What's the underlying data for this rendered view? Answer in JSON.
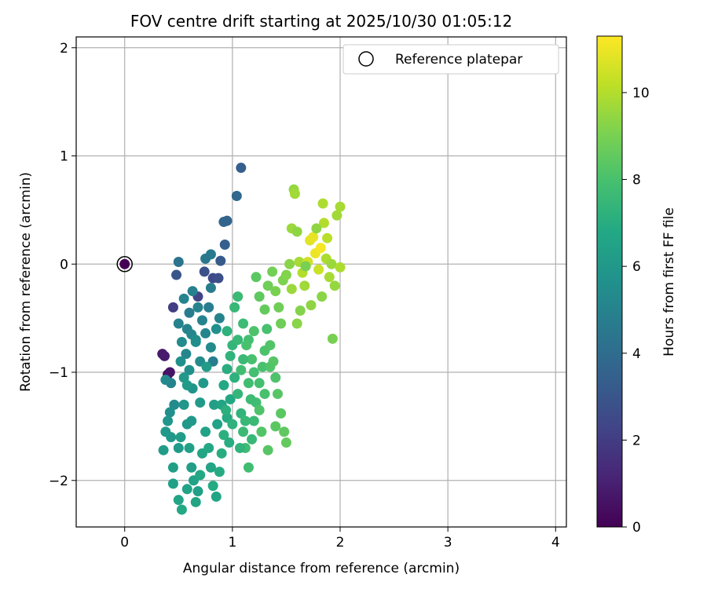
{
  "chart_data": {
    "type": "scatter",
    "title": "FOV centre drift starting at 2025/10/30 01:05:12",
    "xlabel": "Angular distance from reference (arcmin)",
    "ylabel": "Rotation from reference (arcmin)",
    "xlim": [
      -0.45,
      4.1
    ],
    "ylim": [
      -2.43,
      2.1
    ],
    "xticks": [
      0,
      1,
      2,
      3,
      4
    ],
    "yticks": [
      -2,
      -1,
      0,
      1,
      2
    ],
    "xtick_labels": [
      "0",
      "1",
      "2",
      "3",
      "4"
    ],
    "ytick_labels": [
      "−2",
      "−1",
      "0",
      "1",
      "2"
    ],
    "grid": true,
    "legend": {
      "position": "top-right",
      "entries": [
        "Reference platepar"
      ]
    },
    "colorbar": {
      "label": "Hours from first FF file",
      "range": [
        0,
        11.3
      ],
      "ticks": [
        0,
        2,
        4,
        6,
        8,
        10
      ],
      "tick_labels": [
        "0",
        "2",
        "4",
        "6",
        "8",
        "10"
      ],
      "colormap": "viridis"
    },
    "reference_point": {
      "x": 0,
      "y": 0,
      "hours": 0
    },
    "points": [
      [
        0.4,
        -1.02,
        0.3
      ],
      [
        0.35,
        -0.83,
        0.8
      ],
      [
        0.37,
        -0.85,
        0.8
      ],
      [
        0.42,
        -1.0,
        0.6
      ],
      [
        0.45,
        -0.4,
        2.0
      ],
      [
        0.48,
        -0.1,
        3.0
      ],
      [
        0.5,
        0.02,
        4.3
      ],
      [
        0.68,
        -0.3,
        2.3
      ],
      [
        0.74,
        -0.07,
        2.8
      ],
      [
        0.82,
        -0.13,
        2.5
      ],
      [
        0.87,
        -0.13,
        2.7
      ],
      [
        0.89,
        0.03,
        3.2
      ],
      [
        0.8,
        0.09,
        4.6
      ],
      [
        0.75,
        0.05,
        4.5
      ],
      [
        0.93,
        0.18,
        3.4
      ],
      [
        0.95,
        0.4,
        3.6
      ],
      [
        1.04,
        0.63,
        3.8
      ],
      [
        1.08,
        0.89,
        3.4
      ],
      [
        0.92,
        0.39,
        3.7
      ],
      [
        0.43,
        -1.1,
        5.0
      ],
      [
        0.38,
        -1.07,
        5.3
      ],
      [
        0.55,
        -0.32,
        5.0
      ],
      [
        0.58,
        -0.6,
        5.0
      ],
      [
        0.6,
        -0.45,
        4.7
      ],
      [
        0.62,
        -0.65,
        5.2
      ],
      [
        0.66,
        -0.72,
        5.6
      ],
      [
        0.7,
        -0.9,
        5.4
      ],
      [
        0.72,
        -0.52,
        5.0
      ],
      [
        0.75,
        -0.64,
        5.1
      ],
      [
        0.78,
        -0.4,
        4.8
      ],
      [
        0.8,
        -0.77,
        5.4
      ],
      [
        0.82,
        -0.9,
        4.8
      ],
      [
        0.85,
        -0.6,
        5.6
      ],
      [
        0.5,
        -0.55,
        5.0
      ],
      [
        0.53,
        -0.72,
        5.4
      ],
      [
        0.57,
        -0.83,
        5.2
      ],
      [
        0.6,
        -0.98,
        5.6
      ],
      [
        0.63,
        -1.15,
        5.8
      ],
      [
        0.66,
        -0.7,
        5.5
      ],
      [
        0.52,
        -0.9,
        5.6
      ],
      [
        0.55,
        -1.05,
        6.0
      ],
      [
        0.58,
        -1.12,
        6.1
      ],
      [
        0.46,
        -1.3,
        5.4
      ],
      [
        0.42,
        -1.37,
        5.6
      ],
      [
        0.4,
        -1.45,
        5.8
      ],
      [
        0.38,
        -1.55,
        6.0
      ],
      [
        0.36,
        -1.72,
        6.2
      ],
      [
        0.43,
        -1.6,
        6.0
      ],
      [
        0.45,
        -1.88,
        6.3
      ],
      [
        0.5,
        -1.7,
        6.1
      ],
      [
        0.52,
        -1.6,
        6.2
      ],
      [
        0.55,
        -1.3,
        5.9
      ],
      [
        0.58,
        -1.48,
        6.0
      ],
      [
        0.6,
        -1.7,
        6.4
      ],
      [
        0.62,
        -1.88,
        6.3
      ],
      [
        0.64,
        -2.0,
        6.5
      ],
      [
        0.66,
        -2.2,
        6.6
      ],
      [
        0.68,
        -2.1,
        6.4
      ],
      [
        0.7,
        -1.95,
        6.8
      ],
      [
        0.72,
        -1.75,
        6.6
      ],
      [
        0.75,
        -1.55,
        6.5
      ],
      [
        0.78,
        -1.7,
        6.8
      ],
      [
        0.8,
        -1.88,
        6.6
      ],
      [
        0.82,
        -2.05,
        6.9
      ],
      [
        0.85,
        -2.15,
        6.7
      ],
      [
        0.88,
        -1.92,
        6.9
      ],
      [
        0.9,
        -1.75,
        7.0
      ],
      [
        0.92,
        -1.58,
        7.1
      ],
      [
        0.95,
        -1.42,
        6.9
      ],
      [
        0.98,
        -1.25,
        6.8
      ],
      [
        0.45,
        -2.03,
        6.4
      ],
      [
        0.5,
        -2.18,
        6.6
      ],
      [
        0.53,
        -2.27,
        6.8
      ],
      [
        0.58,
        -2.08,
        6.5
      ],
      [
        0.62,
        -1.45,
        6.0
      ],
      [
        0.7,
        -1.28,
        6.1
      ],
      [
        0.73,
        -1.1,
        6.0
      ],
      [
        0.76,
        -0.95,
        6.2
      ],
      [
        0.83,
        -1.3,
        6.3
      ],
      [
        0.86,
        -1.48,
        6.5
      ],
      [
        0.9,
        -1.3,
        6.6
      ],
      [
        0.92,
        -1.12,
        6.8
      ],
      [
        0.95,
        -0.97,
        7.0
      ],
      [
        0.98,
        -0.85,
        7.3
      ],
      [
        1.0,
        -0.75,
        7.4
      ],
      [
        1.02,
        -1.05,
        7.2
      ],
      [
        1.05,
        -1.2,
        7.4
      ],
      [
        1.08,
        -1.38,
        7.3
      ],
      [
        1.1,
        -1.55,
        7.6
      ],
      [
        1.12,
        -1.7,
        7.7
      ],
      [
        1.15,
        -1.88,
        7.8
      ],
      [
        1.18,
        -1.62,
        7.5
      ],
      [
        1.2,
        -1.45,
        7.6
      ],
      [
        1.22,
        -1.28,
        7.8
      ],
      [
        1.25,
        -1.1,
        7.9
      ],
      [
        1.28,
        -0.95,
        8.0
      ],
      [
        1.3,
        -0.8,
        8.1
      ],
      [
        1.32,
        -0.6,
        8.0
      ],
      [
        1.35,
        -0.75,
        8.2
      ],
      [
        1.38,
        -0.9,
        8.3
      ],
      [
        1.4,
        -1.05,
        8.1
      ],
      [
        1.42,
        -1.2,
        8.3
      ],
      [
        1.45,
        -1.38,
        8.4
      ],
      [
        1.48,
        -1.55,
        8.5
      ],
      [
        1.5,
        -1.65,
        8.6
      ],
      [
        0.95,
        -0.62,
        7.2
      ],
      [
        1.02,
        -0.4,
        7.5
      ],
      [
        1.05,
        -0.3,
        7.6
      ],
      [
        1.1,
        -0.55,
        7.7
      ],
      [
        1.15,
        -0.7,
        7.9
      ],
      [
        1.18,
        -0.88,
        8.0
      ],
      [
        1.22,
        -0.12,
        8.4
      ],
      [
        1.25,
        -0.3,
        8.5
      ],
      [
        1.3,
        -0.42,
        8.6
      ],
      [
        1.33,
        -0.2,
        8.8
      ],
      [
        1.37,
        -0.07,
        8.9
      ],
      [
        1.4,
        -0.25,
        9.0
      ],
      [
        1.43,
        -0.4,
        8.8
      ],
      [
        1.47,
        -0.15,
        9.1
      ],
      [
        1.5,
        -0.1,
        9.2
      ],
      [
        1.53,
        0.0,
        9.3
      ],
      [
        1.55,
        0.33,
        9.6
      ],
      [
        1.57,
        0.69,
        9.5
      ],
      [
        1.58,
        0.65,
        9.7
      ],
      [
        1.6,
        0.3,
        9.4
      ],
      [
        1.62,
        0.02,
        9.8
      ],
      [
        1.65,
        -0.08,
        10.0
      ],
      [
        1.67,
        -0.2,
        9.7
      ],
      [
        1.7,
        0.02,
        10.5
      ],
      [
        1.72,
        0.22,
        10.8
      ],
      [
        1.75,
        0.25,
        10.9
      ],
      [
        1.77,
        0.1,
        11.0
      ],
      [
        1.8,
        -0.05,
        10.4
      ],
      [
        1.82,
        0.15,
        11.2
      ],
      [
        1.85,
        0.38,
        10.0
      ],
      [
        1.87,
        0.05,
        9.9
      ],
      [
        1.9,
        -0.12,
        9.8
      ],
      [
        1.92,
        0.0,
        9.6
      ],
      [
        1.95,
        -0.2,
        9.5
      ],
      [
        1.97,
        0.45,
        9.7
      ],
      [
        2.0,
        -0.03,
        9.9
      ],
      [
        2.0,
        0.53,
        9.8
      ],
      [
        1.84,
        0.56,
        9.9
      ],
      [
        1.88,
        0.24,
        10.1
      ],
      [
        1.78,
        0.33,
        9.4
      ],
      [
        1.73,
        -0.38,
        9.4
      ],
      [
        1.68,
        -0.02,
        9.0
      ],
      [
        1.63,
        -0.43,
        9.2
      ],
      [
        1.6,
        -0.55,
        9.3
      ],
      [
        1.83,
        -0.3,
        9.3
      ],
      [
        1.93,
        -0.69,
        9.0
      ],
      [
        1.55,
        -0.23,
        9.6
      ],
      [
        1.45,
        -0.55,
        8.8
      ],
      [
        1.35,
        -0.95,
        8.2
      ],
      [
        1.3,
        -1.2,
        8.0
      ],
      [
        1.25,
        -1.35,
        8.1
      ],
      [
        1.2,
        -1.0,
        7.9
      ],
      [
        1.15,
        -1.1,
        7.8
      ],
      [
        1.1,
        -0.88,
        7.6
      ],
      [
        1.05,
        -0.7,
        7.5
      ],
      [
        1.0,
        -1.48,
        7.2
      ],
      [
        0.97,
        -1.65,
        7.0
      ],
      [
        0.94,
        -1.35,
        7.1
      ],
      [
        1.07,
        -1.7,
        7.3
      ],
      [
        1.12,
        -1.45,
        7.5
      ],
      [
        1.17,
        -1.25,
        7.7
      ],
      [
        1.27,
        -1.55,
        8.2
      ],
      [
        1.33,
        -1.72,
        8.3
      ],
      [
        1.4,
        -1.5,
        8.4
      ],
      [
        1.08,
        -0.98,
        7.8
      ],
      [
        1.13,
        -0.75,
        8.0
      ],
      [
        1.2,
        -0.62,
        8.1
      ],
      [
        0.88,
        -0.5,
        5.0
      ],
      [
        0.8,
        -0.22,
        4.7
      ],
      [
        0.68,
        -0.4,
        5.0
      ],
      [
        0.63,
        -0.25,
        4.9
      ]
    ]
  }
}
